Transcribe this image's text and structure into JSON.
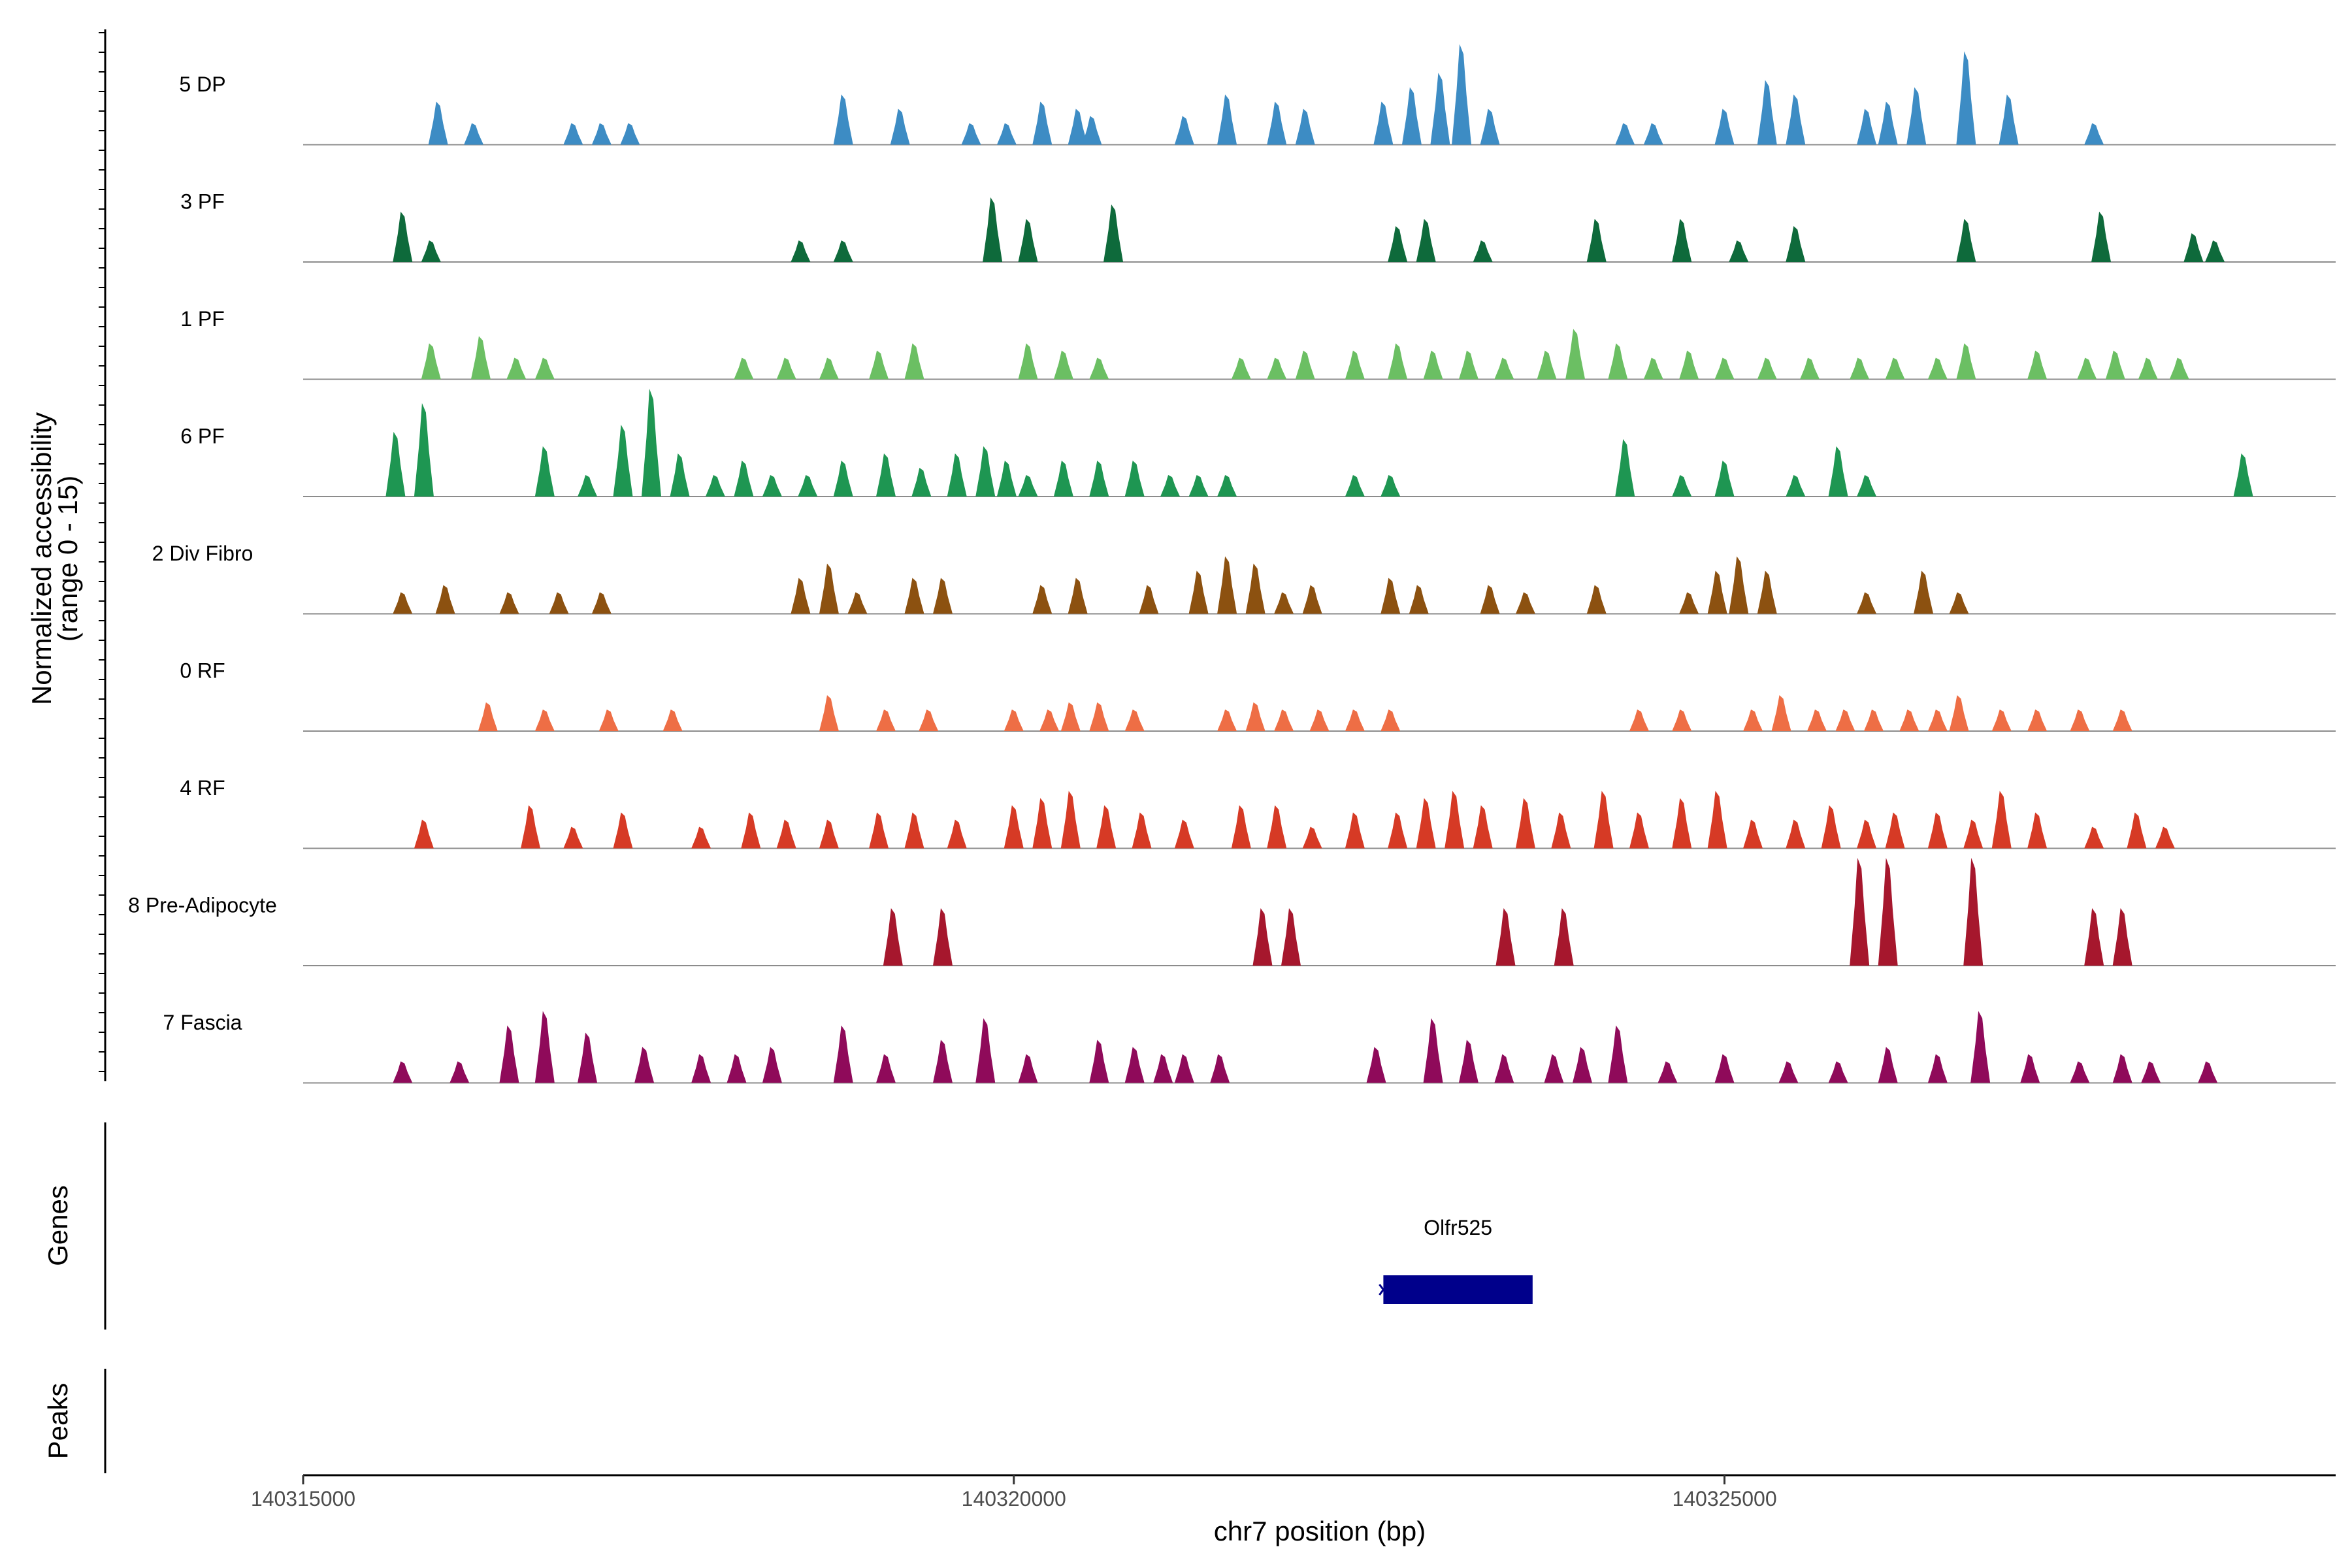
{
  "chart_data": {
    "type": "area",
    "title": "",
    "xlabel": "chr7 position (bp)",
    "ylabel": "Normalized accessibility",
    "ylabel_sub": "(range 0 - 15)",
    "ylim": [
      0,
      15
    ],
    "xlim": [
      140315000,
      140329300
    ],
    "x_ticks": [
      {
        "value": 140315000,
        "label": "140315000"
      },
      {
        "value": 140320000,
        "label": "140320000"
      },
      {
        "value": 140325000,
        "label": "140325000"
      }
    ],
    "tracks": [
      {
        "name": "5 DP",
        "color": "#3D8CC4",
        "peaks": [
          [
            140315950,
            6
          ],
          [
            140316200,
            3
          ],
          [
            140316900,
            3
          ],
          [
            140317100,
            3
          ],
          [
            140317300,
            3
          ],
          [
            140318800,
            7
          ],
          [
            140319200,
            5
          ],
          [
            140319700,
            3
          ],
          [
            140319950,
            3
          ],
          [
            140320200,
            6
          ],
          [
            140320450,
            5
          ],
          [
            140320550,
            4
          ],
          [
            140321200,
            4
          ],
          [
            140321500,
            7
          ],
          [
            140321850,
            6
          ],
          [
            140322050,
            5
          ],
          [
            140322600,
            6
          ],
          [
            140322800,
            8
          ],
          [
            140323000,
            10
          ],
          [
            140323150,
            14
          ],
          [
            140323350,
            5
          ],
          [
            140324300,
            3
          ],
          [
            140324500,
            3
          ],
          [
            140325000,
            5
          ],
          [
            140325300,
            9
          ],
          [
            140325500,
            7
          ],
          [
            140326000,
            5
          ],
          [
            140326150,
            6
          ],
          [
            140326350,
            8
          ],
          [
            140326700,
            13
          ],
          [
            140327000,
            7
          ],
          [
            140327600,
            3
          ]
        ]
      },
      {
        "name": "3 PF",
        "color": "#0E6A3B",
        "peaks": [
          [
            140315700,
            7
          ],
          [
            140315900,
            3
          ],
          [
            140318500,
            3
          ],
          [
            140318800,
            3
          ],
          [
            140319850,
            9
          ],
          [
            140320100,
            6
          ],
          [
            140320700,
            8
          ],
          [
            140322700,
            5
          ],
          [
            140322900,
            6
          ],
          [
            140323300,
            3
          ],
          [
            140324100,
            6
          ],
          [
            140324700,
            6
          ],
          [
            140325100,
            3
          ],
          [
            140325500,
            5
          ],
          [
            140326700,
            6
          ],
          [
            140327650,
            7
          ],
          [
            140328300,
            4
          ],
          [
            140328450,
            3
          ]
        ]
      },
      {
        "name": "1 PF",
        "color": "#6BBF63",
        "peaks": [
          [
            140315900,
            5
          ],
          [
            140316250,
            6
          ],
          [
            140316500,
            3
          ],
          [
            140316700,
            3
          ],
          [
            140318100,
            3
          ],
          [
            140318400,
            3
          ],
          [
            140318700,
            3
          ],
          [
            140319050,
            4
          ],
          [
            140319300,
            5
          ],
          [
            140320100,
            5
          ],
          [
            140320350,
            4
          ],
          [
            140320600,
            3
          ],
          [
            140321600,
            3
          ],
          [
            140321850,
            3
          ],
          [
            140322050,
            4
          ],
          [
            140322400,
            4
          ],
          [
            140322700,
            5
          ],
          [
            140322950,
            4
          ],
          [
            140323200,
            4
          ],
          [
            140323450,
            3
          ],
          [
            140323750,
            4
          ],
          [
            140323950,
            7
          ],
          [
            140324250,
            5
          ],
          [
            140324500,
            3
          ],
          [
            140324750,
            4
          ],
          [
            140325000,
            3
          ],
          [
            140325300,
            3
          ],
          [
            140325600,
            3
          ],
          [
            140325950,
            3
          ],
          [
            140326200,
            3
          ],
          [
            140326500,
            3
          ],
          [
            140326700,
            5
          ],
          [
            140327200,
            4
          ],
          [
            140327550,
            3
          ],
          [
            140327750,
            4
          ],
          [
            140327980,
            3
          ],
          [
            140328200,
            3
          ]
        ]
      },
      {
        "name": "6 PF",
        "color": "#1E9652",
        "peaks": [
          [
            140315650,
            9
          ],
          [
            140315850,
            13
          ],
          [
            140316700,
            7
          ],
          [
            140317000,
            3
          ],
          [
            140317250,
            10
          ],
          [
            140317450,
            15
          ],
          [
            140317650,
            6
          ],
          [
            140317900,
            3
          ],
          [
            140318100,
            5
          ],
          [
            140318300,
            3
          ],
          [
            140318550,
            3
          ],
          [
            140318800,
            5
          ],
          [
            140319100,
            6
          ],
          [
            140319350,
            4
          ],
          [
            140319600,
            6
          ],
          [
            140319800,
            7
          ],
          [
            140319950,
            5
          ],
          [
            140320100,
            3
          ],
          [
            140320350,
            5
          ],
          [
            140320600,
            5
          ],
          [
            140320850,
            5
          ],
          [
            140321100,
            3
          ],
          [
            140321300,
            3
          ],
          [
            140321500,
            3
          ],
          [
            140322400,
            3
          ],
          [
            140322650,
            3
          ],
          [
            140324300,
            8
          ],
          [
            140324700,
            3
          ],
          [
            140325000,
            5
          ],
          [
            140325500,
            3
          ],
          [
            140325800,
            7
          ],
          [
            140326000,
            3
          ],
          [
            140328650,
            6
          ]
        ]
      },
      {
        "name": "2 Div Fibro",
        "color": "#8C5110",
        "peaks": [
          [
            140315700,
            3
          ],
          [
            140316000,
            4
          ],
          [
            140316450,
            3
          ],
          [
            140316800,
            3
          ],
          [
            140317100,
            3
          ],
          [
            140318500,
            5
          ],
          [
            140318700,
            7
          ],
          [
            140318900,
            3
          ],
          [
            140319300,
            5
          ],
          [
            140319500,
            5
          ],
          [
            140320200,
            4
          ],
          [
            140320450,
            5
          ],
          [
            140320950,
            4
          ],
          [
            140321300,
            6
          ],
          [
            140321500,
            8
          ],
          [
            140321700,
            7
          ],
          [
            140321900,
            3
          ],
          [
            140322100,
            4
          ],
          [
            140322650,
            5
          ],
          [
            140322850,
            4
          ],
          [
            140323350,
            4
          ],
          [
            140323600,
            3
          ],
          [
            140324100,
            4
          ],
          [
            140324750,
            3
          ],
          [
            140324950,
            6
          ],
          [
            140325100,
            8
          ],
          [
            140325300,
            6
          ],
          [
            140326000,
            3
          ],
          [
            140326400,
            6
          ],
          [
            140326650,
            3
          ]
        ]
      },
      {
        "name": "0 RF",
        "color": "#EE6E45",
        "peaks": [
          [
            140316300,
            4
          ],
          [
            140316700,
            3
          ],
          [
            140317150,
            3
          ],
          [
            140317600,
            3
          ],
          [
            140318700,
            5
          ],
          [
            140319100,
            3
          ],
          [
            140319400,
            3
          ],
          [
            140320000,
            3
          ],
          [
            140320250,
            3
          ],
          [
            140320400,
            4
          ],
          [
            140320600,
            4
          ],
          [
            140320850,
            3
          ],
          [
            140321500,
            3
          ],
          [
            140321700,
            4
          ],
          [
            140321900,
            3
          ],
          [
            140322150,
            3
          ],
          [
            140322400,
            3
          ],
          [
            140322650,
            3
          ],
          [
            140324400,
            3
          ],
          [
            140324700,
            3
          ],
          [
            140325200,
            3
          ],
          [
            140325400,
            5
          ],
          [
            140325650,
            3
          ],
          [
            140325850,
            3
          ],
          [
            140326050,
            3
          ],
          [
            140326300,
            3
          ],
          [
            140326500,
            3
          ],
          [
            140326650,
            5
          ],
          [
            140326950,
            3
          ],
          [
            140327200,
            3
          ],
          [
            140327500,
            3
          ],
          [
            140327800,
            3
          ]
        ]
      },
      {
        "name": "4 RF",
        "color": "#D63A25",
        "peaks": [
          [
            140315850,
            4
          ],
          [
            140316600,
            6
          ],
          [
            140316900,
            3
          ],
          [
            140317250,
            5
          ],
          [
            140317800,
            3
          ],
          [
            140318150,
            5
          ],
          [
            140318400,
            4
          ],
          [
            140318700,
            4
          ],
          [
            140319050,
            5
          ],
          [
            140319300,
            5
          ],
          [
            140319600,
            4
          ],
          [
            140320000,
            6
          ],
          [
            140320200,
            7
          ],
          [
            140320400,
            8
          ],
          [
            140320650,
            6
          ],
          [
            140320900,
            5
          ],
          [
            140321200,
            4
          ],
          [
            140321600,
            6
          ],
          [
            140321850,
            6
          ],
          [
            140322100,
            3
          ],
          [
            140322400,
            5
          ],
          [
            140322700,
            5
          ],
          [
            140322900,
            7
          ],
          [
            140323100,
            8
          ],
          [
            140323300,
            6
          ],
          [
            140323600,
            7
          ],
          [
            140323850,
            5
          ],
          [
            140324150,
            8
          ],
          [
            140324400,
            5
          ],
          [
            140324700,
            7
          ],
          [
            140324950,
            8
          ],
          [
            140325200,
            4
          ],
          [
            140325500,
            4
          ],
          [
            140325750,
            6
          ],
          [
            140326000,
            4
          ],
          [
            140326200,
            5
          ],
          [
            140326500,
            5
          ],
          [
            140326750,
            4
          ],
          [
            140326950,
            8
          ],
          [
            140327200,
            5
          ],
          [
            140327600,
            3
          ],
          [
            140327900,
            5
          ],
          [
            140328100,
            3
          ]
        ]
      },
      {
        "name": "8 Pre-Adipocyte",
        "color": "#A6172D",
        "peaks": [
          [
            140319150,
            8
          ],
          [
            140319500,
            8
          ],
          [
            140321750,
            8
          ],
          [
            140321950,
            8
          ],
          [
            140323460,
            8
          ],
          [
            140323870,
            8
          ],
          [
            140325950,
            15
          ],
          [
            140326150,
            15
          ],
          [
            140326750,
            15
          ],
          [
            140327600,
            8
          ],
          [
            140327800,
            8
          ]
        ]
      },
      {
        "name": "7 Fascia",
        "color": "#8F0A5A",
        "peaks": [
          [
            140315700,
            3
          ],
          [
            140316100,
            3
          ],
          [
            140316450,
            8
          ],
          [
            140316700,
            10
          ],
          [
            140317000,
            7
          ],
          [
            140317400,
            5
          ],
          [
            140317800,
            4
          ],
          [
            140318050,
            4
          ],
          [
            140318300,
            5
          ],
          [
            140318800,
            8
          ],
          [
            140319100,
            4
          ],
          [
            140319500,
            6
          ],
          [
            140319800,
            9
          ],
          [
            140320100,
            4
          ],
          [
            140320600,
            6
          ],
          [
            140320850,
            5
          ],
          [
            140321050,
            4
          ],
          [
            140321200,
            4
          ],
          [
            140321450,
            4
          ],
          [
            140322550,
            5
          ],
          [
            140322950,
            9
          ],
          [
            140323200,
            6
          ],
          [
            140323450,
            4
          ],
          [
            140323800,
            4
          ],
          [
            140324000,
            5
          ],
          [
            140324250,
            8
          ],
          [
            140324600,
            3
          ],
          [
            140325000,
            4
          ],
          [
            140325450,
            3
          ],
          [
            140325800,
            3
          ],
          [
            140326150,
            5
          ],
          [
            140326500,
            4
          ],
          [
            140326800,
            10
          ],
          [
            140327150,
            4
          ],
          [
            140327500,
            3
          ],
          [
            140327800,
            4
          ],
          [
            140328000,
            3
          ],
          [
            140328400,
            3
          ]
        ]
      }
    ],
    "genes_panel": {
      "title": "Genes",
      "genes": [
        {
          "name": "Olfr525",
          "start": 140322600,
          "end": 140323650,
          "strand": "-"
        }
      ]
    },
    "peaks_panel": {
      "title": "Peaks"
    }
  }
}
